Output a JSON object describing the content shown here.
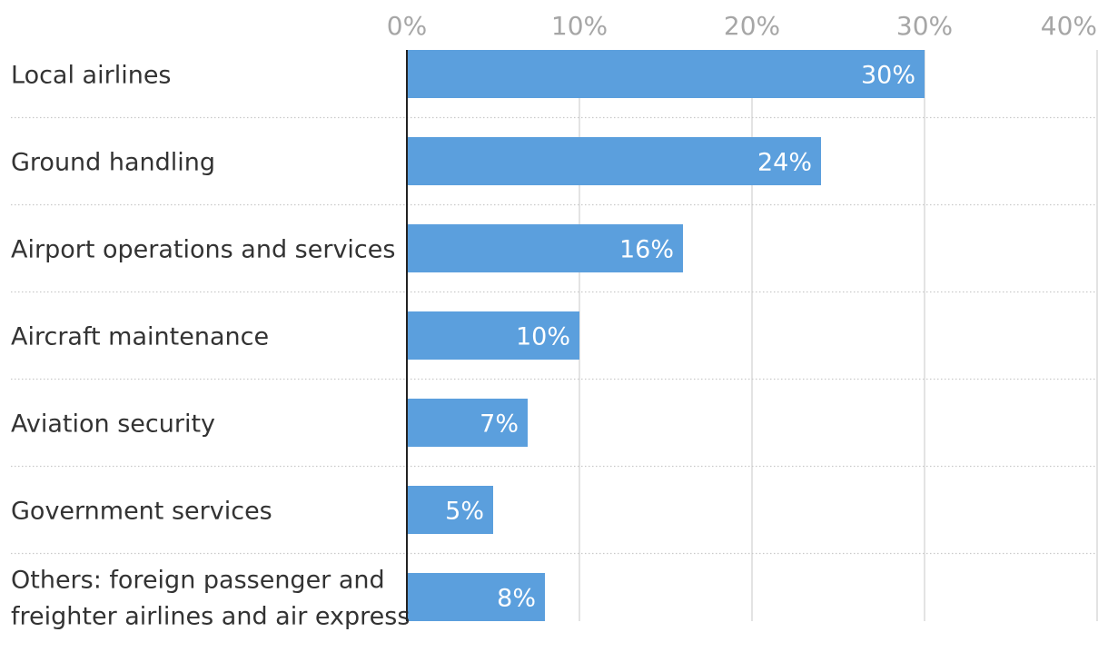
{
  "chart_data": {
    "type": "bar",
    "orientation": "horizontal",
    "categories": [
      [
        "Local airlines"
      ],
      [
        "Ground handling"
      ],
      [
        "Airport operations and services"
      ],
      [
        "Aircraft maintenance"
      ],
      [
        "Aviation security"
      ],
      [
        "Government services"
      ],
      [
        "Others: foreign passenger and",
        "freighter airlines and air express"
      ]
    ],
    "values": [
      30,
      24,
      16,
      10,
      7,
      5,
      8
    ],
    "value_labels": [
      "30%",
      "24%",
      "16%",
      "10%",
      "7%",
      "5%",
      "8%"
    ],
    "x_ticks": [
      0,
      10,
      20,
      30,
      40
    ],
    "x_tick_labels": [
      "0%",
      "10%",
      "20%",
      "30%",
      "40%"
    ],
    "xlim": [
      0,
      40
    ],
    "axis_position": "top",
    "grid": true,
    "bar_color": "#5b9fdd",
    "title": "",
    "xlabel": "",
    "ylabel": ""
  }
}
